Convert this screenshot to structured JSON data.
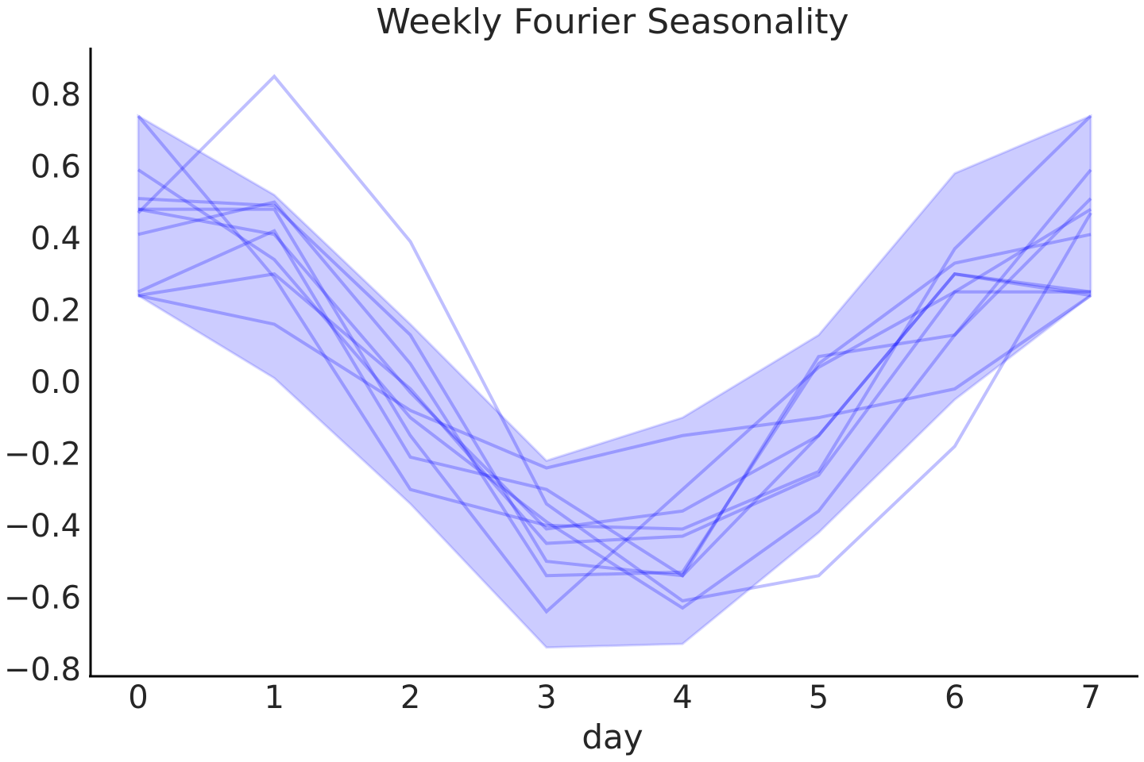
{
  "chart_data": {
    "type": "line",
    "title": "Weekly Fourier Seasonality",
    "xlabel": "day",
    "ylabel": "",
    "x": [
      0,
      1,
      2,
      3,
      4,
      5,
      6,
      7
    ],
    "xticks": [
      "0",
      "1",
      "2",
      "3",
      "4",
      "5",
      "6",
      "7"
    ],
    "yticks": [
      "0.8",
      "0.6",
      "0.4",
      "0.2",
      "0.0",
      "−0.2",
      "−0.4",
      "−0.6",
      "−0.8"
    ],
    "ytick_values": [
      0.8,
      0.6,
      0.4,
      0.2,
      0.0,
      -0.2,
      -0.4,
      -0.6,
      -0.8
    ],
    "xlim": [
      -0.35,
      7.35
    ],
    "ylim": [
      -0.82,
      0.93
    ],
    "grid": false,
    "line_color": "#0000ff",
    "band_color": "#0000ff",
    "band": {
      "lower": [
        0.24,
        0.01,
        -0.34,
        -0.74,
        -0.73,
        -0.42,
        -0.05,
        0.24
      ],
      "upper": [
        0.74,
        0.52,
        0.16,
        -0.22,
        -0.1,
        0.13,
        0.58,
        0.74
      ]
    },
    "series": [
      {
        "values": [
          0.47,
          0.85,
          0.39,
          -0.34,
          -0.61,
          -0.54,
          -0.18,
          0.47
        ]
      },
      {
        "values": [
          0.74,
          0.29,
          -0.3,
          -0.4,
          -0.41,
          -0.25,
          0.37,
          0.74
        ]
      },
      {
        "values": [
          0.59,
          0.34,
          -0.1,
          -0.39,
          -0.63,
          -0.36,
          0.13,
          0.59
        ]
      },
      {
        "values": [
          0.51,
          0.49,
          0.13,
          -0.5,
          -0.54,
          0.07,
          0.13,
          0.51
        ]
      },
      {
        "values": [
          0.41,
          0.5,
          0.05,
          -0.54,
          -0.53,
          0.05,
          0.33,
          0.41
        ]
      },
      {
        "values": [
          0.48,
          0.48,
          -0.15,
          -0.64,
          -0.3,
          0.04,
          0.25,
          0.48
        ]
      },
      {
        "values": [
          0.48,
          0.41,
          -0.03,
          -0.41,
          -0.36,
          -0.15,
          0.3,
          0.24
        ]
      },
      {
        "values": [
          0.25,
          0.42,
          -0.21,
          -0.3,
          -0.54,
          -0.15,
          0.3,
          0.25
        ]
      },
      {
        "values": [
          0.24,
          0.3,
          -0.02,
          -0.45,
          -0.43,
          -0.26,
          0.25,
          0.25
        ]
      },
      {
        "values": [
          0.24,
          0.16,
          -0.08,
          -0.24,
          -0.15,
          -0.1,
          -0.02,
          0.24
        ]
      }
    ]
  }
}
